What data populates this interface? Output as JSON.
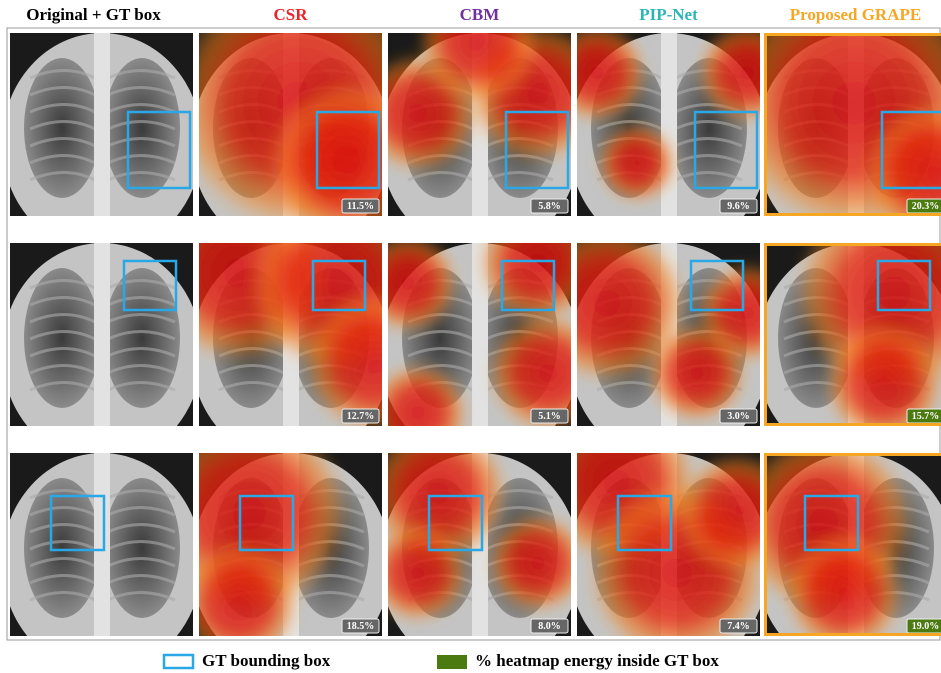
{
  "header": {
    "columns": [
      "Original + GT box",
      "CSR",
      "CBM",
      "PIP-Net",
      "Proposed GRAPE"
    ]
  },
  "rows": [
    {
      "percentages": [
        "11.5%",
        "5.8%",
        "9.6%",
        "20.3%"
      ]
    },
    {
      "percentages": [
        "12.7%",
        "5.1%",
        "3.0%",
        "15.7%"
      ]
    },
    {
      "percentages": [
        "18.5%",
        "8.0%",
        "7.4%",
        "19.0%"
      ]
    }
  ],
  "legend": {
    "gt_box": "GT bounding box",
    "energy": "% heatmap energy inside GT box"
  }
}
